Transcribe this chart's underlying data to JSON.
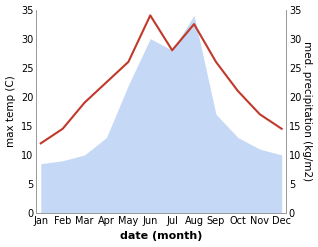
{
  "months": [
    "Jan",
    "Feb",
    "Mar",
    "Apr",
    "May",
    "Jun",
    "Jul",
    "Aug",
    "Sep",
    "Oct",
    "Nov",
    "Dec"
  ],
  "temperature": [
    12,
    14.5,
    19,
    22.5,
    26,
    34,
    28,
    32.5,
    26,
    21,
    17,
    14.5
  ],
  "precipitation": [
    8.5,
    9,
    10,
    13,
    22,
    30,
    28,
    34,
    17,
    13,
    11,
    10
  ],
  "temp_color": "#c0392b",
  "precip_color": "#c5d8f5",
  "ylim_left": [
    0,
    35
  ],
  "ylim_right": [
    0,
    35
  ],
  "xlabel": "date (month)",
  "ylabel_left": "max temp (C)",
  "ylabel_right": "med. precipitation (kg/m2)",
  "yticks": [
    0,
    5,
    10,
    15,
    20,
    25,
    30,
    35
  ],
  "tick_fontsize": 7,
  "label_fontsize": 8,
  "ylabel_fontsize": 7.5
}
